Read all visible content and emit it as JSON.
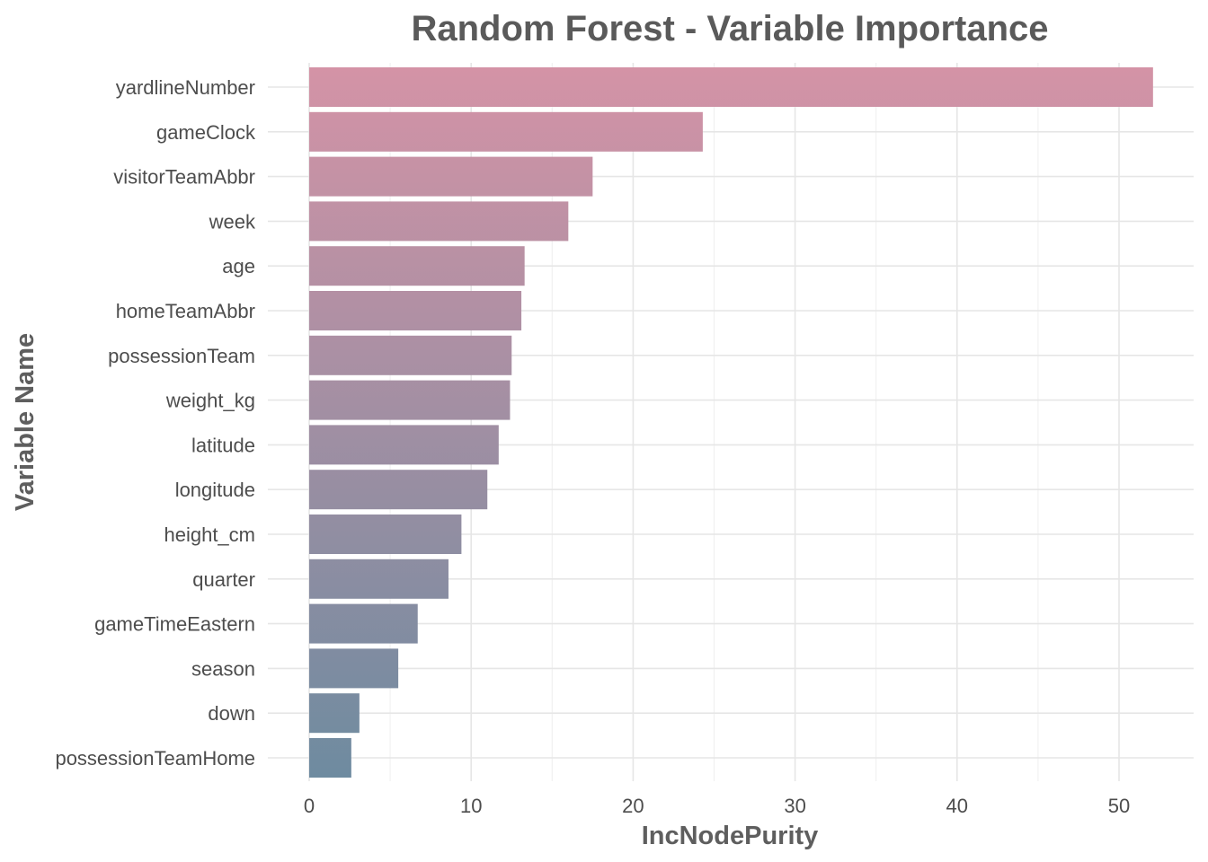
{
  "chart_data": {
    "type": "bar",
    "orientation": "horizontal",
    "title": "Random Forest - Variable Importance",
    "xlabel": "IncNodePurity",
    "ylabel": "Variable Name",
    "xlim": [
      0,
      54
    ],
    "xticks": [
      0,
      10,
      20,
      30,
      40,
      50
    ],
    "grid": true,
    "legend": "none",
    "color_top": "#d493a6",
    "color_bottom": "#6e8ba0",
    "categories": [
      "yardlineNumber",
      "gameClock",
      "visitorTeamAbbr",
      "week",
      "age",
      "homeTeamAbbr",
      "possessionTeam",
      "weight_kg",
      "latitude",
      "longitude",
      "height_cm",
      "quarter",
      "gameTimeEastern",
      "season",
      "down",
      "possessionTeamHome"
    ],
    "values": [
      52.1,
      24.3,
      17.5,
      16.0,
      13.3,
      13.1,
      12.5,
      12.4,
      11.7,
      11.0,
      9.4,
      8.6,
      6.7,
      5.5,
      3.1,
      2.6
    ]
  }
}
